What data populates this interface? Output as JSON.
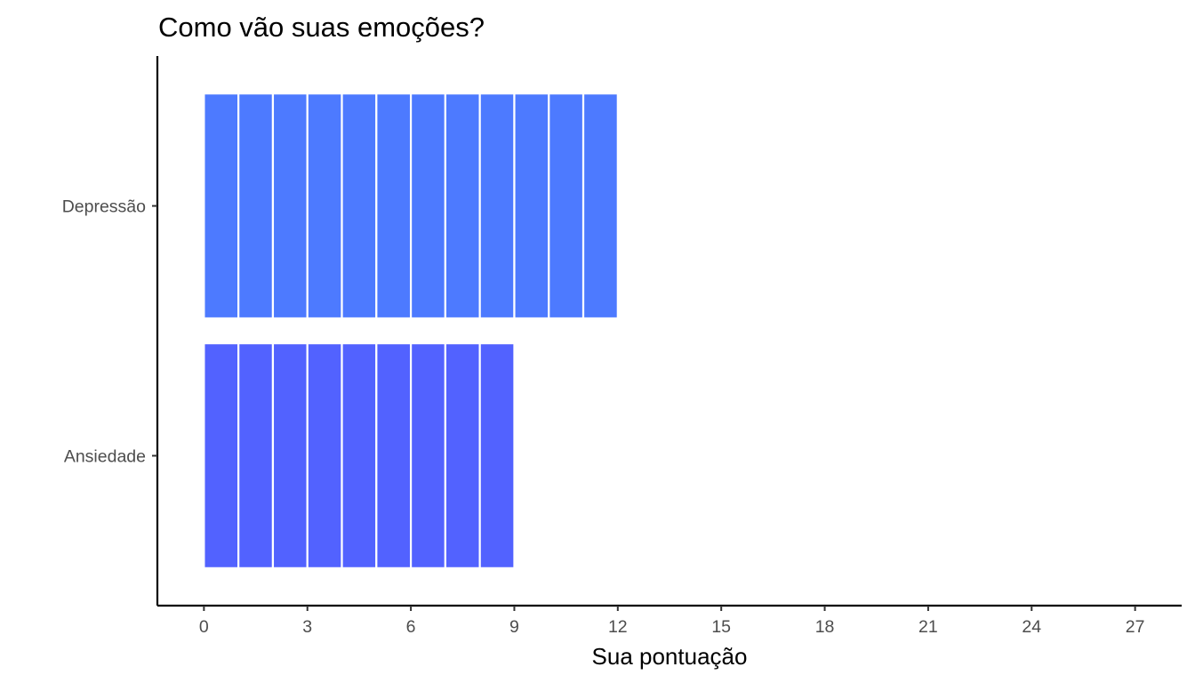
{
  "chart_data": {
    "type": "bar",
    "orientation": "horizontal",
    "title": "Como vão suas emoções?",
    "xlabel": "Sua pontuação",
    "ylabel": "",
    "categories": [
      "Depressão",
      "Ansiedade"
    ],
    "values": [
      12,
      9
    ],
    "segment_unit": 1,
    "colors": [
      "#4D7AFF",
      "#5262FF"
    ],
    "xlim": [
      -1.35,
      28.35
    ],
    "xticks": [
      0,
      3,
      6,
      9,
      12,
      15,
      18,
      21,
      24,
      27
    ],
    "xtick_labels": [
      "0",
      "3",
      "6",
      "9",
      "12",
      "15",
      "18",
      "21",
      "24",
      "27"
    ],
    "grid": false,
    "legend": "none"
  }
}
